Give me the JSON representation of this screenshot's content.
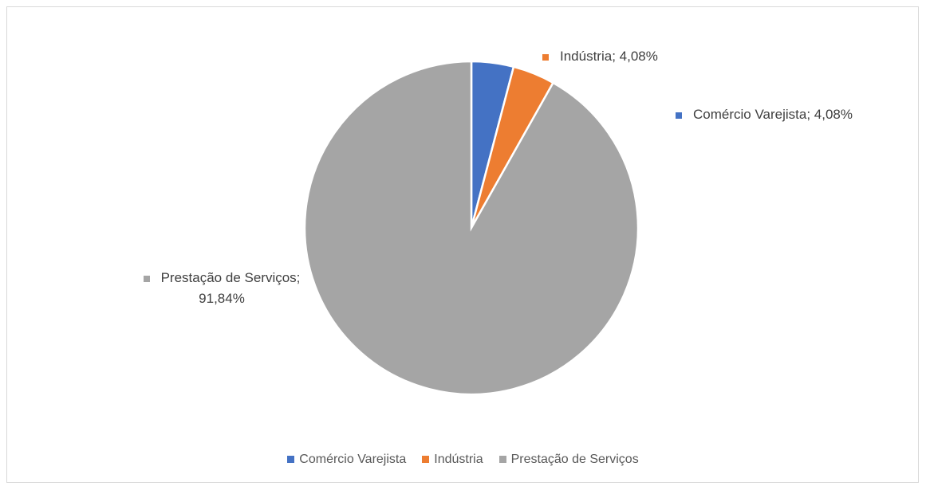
{
  "chart_data": {
    "type": "pie",
    "categories": [
      "Comércio Varejista",
      "Indústria",
      "Prestação de Serviços"
    ],
    "values": [
      4.08,
      4.08,
      91.84
    ],
    "value_labels": [
      "Comércio Varejista; 4,08%",
      "Indústria; 4,08%",
      "Prestação de Serviços; 91,84%"
    ],
    "colors": [
      "#4472c4",
      "#ed7d31",
      "#a5a5a5"
    ],
    "legend": "bottom"
  }
}
